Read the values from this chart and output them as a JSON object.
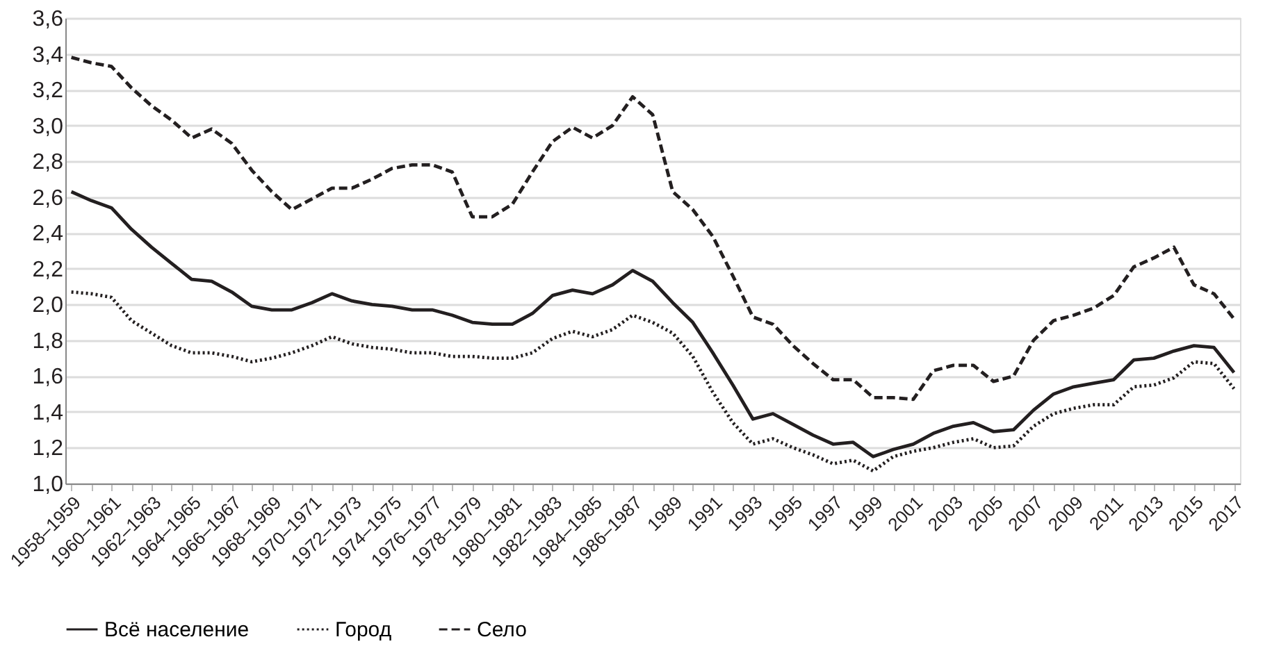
{
  "chart_data": {
    "type": "line",
    "categories": [
      "1958–1959",
      null,
      "1960–1961",
      null,
      "1962–1963",
      null,
      "1964–1965",
      null,
      "1966–1967",
      null,
      "1968–1969",
      null,
      "1970–1971",
      null,
      "1972–1973",
      null,
      "1974–1975",
      null,
      "1976–1977",
      null,
      "1978–1979",
      null,
      "1980–1981",
      null,
      "1982–1983",
      null,
      "1984–1985",
      null,
      "1986–1987",
      null,
      "1989",
      null,
      "1991",
      null,
      "1993",
      null,
      "1995",
      null,
      "1997",
      null,
      "1999",
      null,
      "2001",
      null,
      "2003",
      null,
      "2005",
      null,
      "2007",
      null,
      "2009",
      null,
      "2011",
      null,
      "2013",
      null,
      "2015",
      null,
      "2017"
    ],
    "series": [
      {
        "name": "Всё население",
        "color": "#231f20",
        "line_style": "solid",
        "values": [
          2.63,
          2.58,
          2.54,
          2.42,
          2.32,
          2.23,
          2.14,
          2.13,
          2.07,
          1.99,
          1.97,
          1.97,
          2.01,
          2.06,
          2.02,
          2.0,
          1.99,
          1.97,
          1.97,
          1.94,
          1.9,
          1.89,
          1.89,
          1.95,
          2.05,
          2.08,
          2.06,
          2.11,
          2.19,
          2.13,
          2.01,
          1.9,
          1.73,
          1.55,
          1.36,
          1.39,
          1.33,
          1.27,
          1.22,
          1.23,
          1.15,
          1.19,
          1.22,
          1.28,
          1.32,
          1.34,
          1.29,
          1.3,
          1.41,
          1.5,
          1.54,
          1.56,
          1.58,
          1.69,
          1.7,
          1.74,
          1.77,
          1.76,
          1.62
        ]
      },
      {
        "name": "Город",
        "color": "#231f20",
        "line_style": "dotted",
        "values": [
          2.07,
          2.06,
          2.04,
          1.91,
          1.84,
          1.77,
          1.73,
          1.73,
          1.71,
          1.68,
          1.7,
          1.73,
          1.77,
          1.82,
          1.78,
          1.76,
          1.75,
          1.73,
          1.73,
          1.71,
          1.71,
          1.7,
          1.7,
          1.73,
          1.81,
          1.85,
          1.82,
          1.86,
          1.94,
          1.9,
          1.84,
          1.71,
          1.51,
          1.34,
          1.22,
          1.25,
          1.2,
          1.16,
          1.11,
          1.13,
          1.07,
          1.15,
          1.18,
          1.2,
          1.23,
          1.25,
          1.2,
          1.21,
          1.32,
          1.39,
          1.42,
          1.44,
          1.44,
          1.54,
          1.55,
          1.59,
          1.68,
          1.67,
          1.53
        ]
      },
      {
        "name": "Село",
        "color": "#231f20",
        "line_style": "dashed",
        "values": [
          3.38,
          3.35,
          3.33,
          3.21,
          3.11,
          3.03,
          2.93,
          2.98,
          2.9,
          2.75,
          2.63,
          2.53,
          2.59,
          2.65,
          2.65,
          2.7,
          2.76,
          2.78,
          2.78,
          2.74,
          2.49,
          2.49,
          2.56,
          2.74,
          2.91,
          2.99,
          2.93,
          3.0,
          3.16,
          3.06,
          2.63,
          2.53,
          2.38,
          2.16,
          1.93,
          1.89,
          1.77,
          1.67,
          1.58,
          1.58,
          1.48,
          1.48,
          1.47,
          1.63,
          1.66,
          1.66,
          1.57,
          1.6,
          1.8,
          1.91,
          1.94,
          1.98,
          2.05,
          2.21,
          2.26,
          2.32,
          2.11,
          2.06,
          1.92
        ]
      }
    ],
    "ylim": [
      1.0,
      3.6
    ],
    "yticks": [
      {
        "value": 1.0,
        "label": "1,0"
      },
      {
        "value": 1.2,
        "label": "1,2"
      },
      {
        "value": 1.4,
        "label": "1,4"
      },
      {
        "value": 1.6,
        "label": "1,6"
      },
      {
        "value": 1.8,
        "label": "1,8"
      },
      {
        "value": 2.0,
        "label": "2,0"
      },
      {
        "value": 2.2,
        "label": "2,2"
      },
      {
        "value": 2.4,
        "label": "2,4"
      },
      {
        "value": 2.6,
        "label": "2,6"
      },
      {
        "value": 2.8,
        "label": "2,8"
      },
      {
        "value": 3.0,
        "label": "3,0"
      },
      {
        "value": 3.2,
        "label": "3,2"
      },
      {
        "value": 3.4,
        "label": "3,4"
      },
      {
        "value": 3.6,
        "label": "3,6"
      }
    ],
    "grid": "y",
    "legend": "bottom",
    "marker": "none"
  }
}
